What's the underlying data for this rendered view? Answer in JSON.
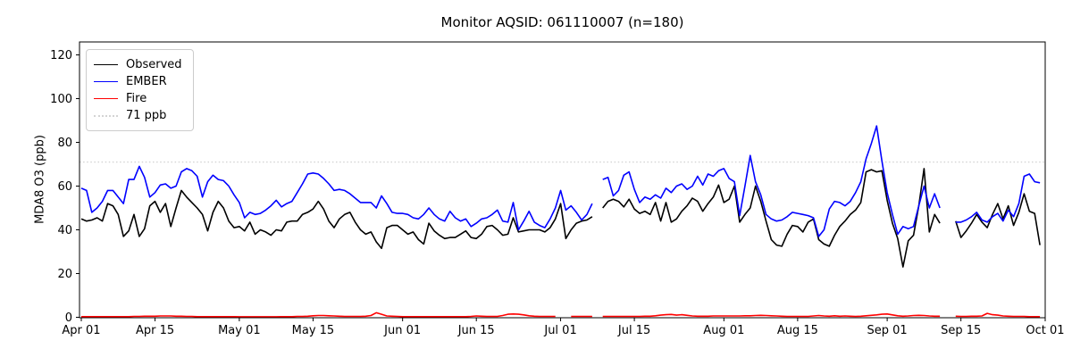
{
  "chart_data": {
    "type": "line",
    "title": "Monitor AQSID: 061110007 (n=180)",
    "xlabel": "",
    "ylabel": "MDA8 O3 (ppb)",
    "ylim": [
      0,
      125.5
    ],
    "y_ticks": [
      0,
      20,
      40,
      60,
      80,
      100,
      120
    ],
    "x_axis_unit": "days since Apr 01",
    "x_tick_days": [
      0,
      14,
      30,
      44,
      61,
      75,
      91,
      105,
      122,
      136,
      153,
      167,
      183
    ],
    "x_tick_labels": [
      "Apr 01",
      "Apr 15",
      "May 01",
      "May 15",
      "Jun 01",
      "Jun 15",
      "Jul 01",
      "Jul 15",
      "Aug 01",
      "Aug 15",
      "Sep 01",
      "Sep 15",
      "Oct 01"
    ],
    "grid": false,
    "legend_position": "upper left",
    "threshold": {
      "value": 71,
      "label": "71 ppb",
      "color": "#d3d3d3",
      "line_style": "dotted"
    },
    "legend": [
      {
        "label": "Observed",
        "color": "#000000",
        "line_style": "solid"
      },
      {
        "label": "EMBER",
        "color": "#0000ff",
        "line_style": "solid"
      },
      {
        "label": "Fire",
        "color": "#ff0000",
        "line_style": "solid"
      },
      {
        "label": "71 ppb",
        "color": "#d3d3d3",
        "line_style": "dotted"
      }
    ],
    "series": [
      {
        "name": "Observed",
        "color": "#000000",
        "values": [
          45,
          44,
          44.5,
          45.5,
          44,
          52,
          51,
          47,
          37,
          39.5,
          47,
          37,
          40.5,
          51,
          53,
          48,
          52,
          41.5,
          50,
          58,
          55,
          52.5,
          50,
          47,
          39.5,
          48,
          53,
          50,
          44,
          41,
          41.5,
          39.5,
          43.5,
          38,
          40,
          39,
          37.5,
          40,
          39.5,
          43.5,
          44,
          44,
          47,
          48,
          49.5,
          53,
          49.5,
          44,
          41,
          45,
          47,
          48,
          43.5,
          40,
          38,
          39,
          34.5,
          31.5,
          41,
          42,
          42,
          40,
          38,
          39,
          35.5,
          33.5,
          43,
          39.5,
          37.5,
          36,
          36.5,
          36.5,
          38,
          39.5,
          36.5,
          36,
          38,
          41.5,
          42,
          40,
          37.5,
          38,
          45.5,
          39,
          39.5,
          40,
          40,
          40,
          39,
          41,
          45,
          52,
          36,
          40,
          43,
          44,
          44.5,
          46,
          null,
          50,
          53,
          54,
          53,
          50.5,
          54,
          49.5,
          47.5,
          48.5,
          47,
          52.5,
          44,
          52.5,
          43.5,
          45,
          48.5,
          51,
          54.5,
          53,
          48.5,
          52,
          55,
          60.5,
          52.5,
          54,
          60,
          43.5,
          47,
          50,
          60,
          53,
          44,
          35.5,
          33,
          32.5,
          38,
          42,
          41.5,
          39,
          43.5,
          45,
          35.5,
          33.5,
          32.5,
          37.5,
          41.5,
          44,
          47,
          49,
          52.5,
          66.5,
          67.5,
          66.5,
          67,
          53.5,
          43,
          36,
          23,
          35,
          37.5,
          51,
          68,
          39,
          47,
          43,
          null,
          null,
          44,
          36.5,
          39.5,
          43,
          47,
          43.5,
          41,
          47,
          52,
          45,
          51,
          42,
          48,
          56.5,
          48.5,
          47.5,
          33
        ]
      },
      {
        "name": "EMBER",
        "color": "#0000ff",
        "values": [
          59,
          58,
          48,
          50,
          53,
          58,
          58,
          55,
          52,
          63,
          63,
          69,
          64,
          55,
          57,
          60.5,
          61,
          59,
          60,
          66.5,
          68,
          67,
          64.5,
          55,
          62,
          65,
          63,
          62.5,
          60,
          56,
          52.5,
          45.5,
          48,
          47,
          47.5,
          49,
          51,
          53.5,
          50.5,
          52,
          53,
          57,
          61,
          65.5,
          66,
          65.5,
          63.5,
          61,
          58,
          58.5,
          58,
          56.5,
          54.5,
          52.5,
          52.5,
          52.5,
          50,
          55.5,
          52,
          48,
          47.5,
          47.5,
          47,
          45.5,
          45,
          47,
          50,
          47,
          45,
          44,
          48.5,
          45.5,
          44,
          45,
          41.5,
          43,
          45,
          45.5,
          47,
          49,
          44,
          43.5,
          52.5,
          40,
          44,
          48.5,
          43.5,
          42,
          41,
          45,
          50,
          58,
          49,
          51,
          48,
          44.5,
          47,
          52,
          null,
          63,
          64,
          55.5,
          58,
          65,
          66.5,
          58.5,
          52.5,
          55,
          54,
          56,
          54.5,
          59,
          57,
          60,
          61,
          58.5,
          60,
          64.5,
          60.5,
          65.5,
          64.5,
          67,
          68,
          63.5,
          62,
          46.5,
          60,
          74,
          62,
          56,
          47,
          45,
          44,
          44.5,
          46,
          48,
          47.5,
          47,
          46.5,
          45.5,
          37,
          40,
          49.5,
          53,
          52.5,
          51,
          53,
          57,
          62,
          72.5,
          79.5,
          87.5,
          71.5,
          57,
          47,
          38,
          41.5,
          40.5,
          41.5,
          51,
          60,
          50,
          56.5,
          50,
          null,
          null,
          43.5,
          43.5,
          44.5,
          46,
          48,
          44.5,
          43.5,
          46,
          47.5,
          44,
          49,
          46,
          52,
          64.5,
          65.5,
          62,
          61.5
        ]
      },
      {
        "name": "Fire",
        "color": "#ff0000",
        "values": [
          0.3,
          0.3,
          0.3,
          0.3,
          0.3,
          0.3,
          0.3,
          0.3,
          0.3,
          0.3,
          0.4,
          0.4,
          0.5,
          0.5,
          0.5,
          0.6,
          0.6,
          0.6,
          0.5,
          0.5,
          0.4,
          0.4,
          0.3,
          0.3,
          0.3,
          0.3,
          0.3,
          0.3,
          0.3,
          0.3,
          0.25,
          0.25,
          0.25,
          0.25,
          0.25,
          0.25,
          0.25,
          0.25,
          0.3,
          0.3,
          0.3,
          0.4,
          0.4,
          0.5,
          0.7,
          0.8,
          0.8,
          0.7,
          0.6,
          0.5,
          0.4,
          0.4,
          0.4,
          0.4,
          0.5,
          0.8,
          2.1,
          1.4,
          0.6,
          0.5,
          0.4,
          0.3,
          0.3,
          0.3,
          0.3,
          0.3,
          0.3,
          0.3,
          0.3,
          0.3,
          0.3,
          0.3,
          0.3,
          0.3,
          0.4,
          0.6,
          0.5,
          0.4,
          0.4,
          0.4,
          0.8,
          1.4,
          1.5,
          1.4,
          1.1,
          0.7,
          0.5,
          0.4,
          0.4,
          0.4,
          0.4,
          null,
          null,
          0.4,
          0.4,
          0.4,
          0.4,
          0.4,
          null,
          0.4,
          0.4,
          0.4,
          0.4,
          0.4,
          0.4,
          0.4,
          0.4,
          0.5,
          0.5,
          0.7,
          1,
          1.2,
          1.3,
          1,
          1.2,
          0.9,
          0.6,
          0.5,
          0.5,
          0.5,
          0.6,
          0.6,
          0.6,
          0.6,
          0.6,
          0.6,
          0.7,
          0.7,
          0.8,
          0.9,
          0.8,
          0.7,
          0.6,
          0.5,
          0.4,
          0.4,
          0.4,
          0.4,
          0.4,
          0.6,
          0.8,
          0.6,
          0.5,
          0.7,
          0.5,
          0.6,
          0.5,
          0.4,
          0.5,
          0.7,
          0.9,
          1.1,
          1.4,
          1.5,
          1.1,
          0.7,
          0.5,
          0.6,
          0.8,
          0.9,
          0.8,
          0.6,
          0.5,
          0.5,
          null,
          null,
          0.5,
          0.4,
          0.4,
          0.5,
          0.5,
          0.6,
          1.8,
          1.2,
          1,
          0.6,
          0.5,
          0.4,
          0.4,
          0.4,
          0.3,
          0.3,
          0.3
        ]
      }
    ]
  }
}
